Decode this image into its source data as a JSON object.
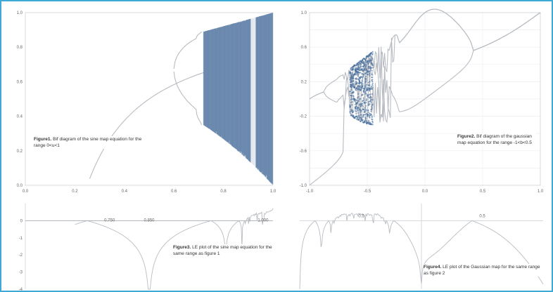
{
  "figure": {
    "frame_color": "#3fa9d6",
    "line_color": "#b8bcc2",
    "chaos_color": "#4a6f9c"
  },
  "chart_data": [
    {
      "id": "bifurcation-sine",
      "type": "scatter",
      "caption": {
        "label": "Figure1.",
        "text": "Bif diagram of the sine map equation for the range 0<u<1"
      },
      "xlim": [
        0,
        1
      ],
      "ylim": [
        0,
        1
      ],
      "x_ticks": [
        "0.0",
        "0.2",
        "0.4",
        "0.6",
        "0.8",
        "1.0"
      ],
      "y_ticks": [
        "0.0",
        "0.2",
        "0.4",
        "0.6",
        "0.8",
        "1.0"
      ],
      "grid": false,
      "period_doubling": [
        0.42,
        0.62,
        0.71
      ],
      "chaos_onset": 0.72
    },
    {
      "id": "bifurcation-gaussian",
      "type": "scatter",
      "caption": {
        "label": "Figure2.",
        "text": "Bif diagram of the gaussian map equation for the range -1<b<0.5"
      },
      "xlim": [
        -1,
        1
      ],
      "ylim": [
        -1,
        1
      ],
      "x_ticks": [
        "-1.0",
        "-0.5",
        "0.0",
        "0.5",
        "1.0"
      ],
      "y_ticks": [
        "-1.0",
        "-0.8",
        "-0.6",
        "-0.4",
        "-0.2",
        "0.0",
        "0.2",
        "0.4",
        "0.6",
        "0.8",
        "1.0"
      ],
      "grid": true,
      "chaos_regions": [
        [
          -0.65,
          -0.45
        ]
      ]
    },
    {
      "id": "lyapunov-sine",
      "type": "line",
      "caption": {
        "label": "Figure3.",
        "text": "LE plot of the sine map equation for the same range as figure 1"
      },
      "xlim": [
        0,
        1
      ],
      "ylim": [
        -4,
        1
      ],
      "y_ticks": [
        "0",
        "-1",
        "-2",
        "-3",
        "-4"
      ],
      "annotations": [
        "0.750",
        "0.850",
        "1.000"
      ],
      "dips": [
        0.25,
        0.5,
        0.62,
        0.8
      ]
    },
    {
      "id": "lyapunov-gaussian",
      "type": "line",
      "caption": {
        "label": "Figure4.",
        "text": "LE plot of the Gaussian map for the same range as figure 2"
      },
      "xlim": [
        -1,
        1
      ],
      "ylim": [
        -4,
        1
      ],
      "annotations": [
        "-0.5",
        "0.5"
      ]
    }
  ]
}
